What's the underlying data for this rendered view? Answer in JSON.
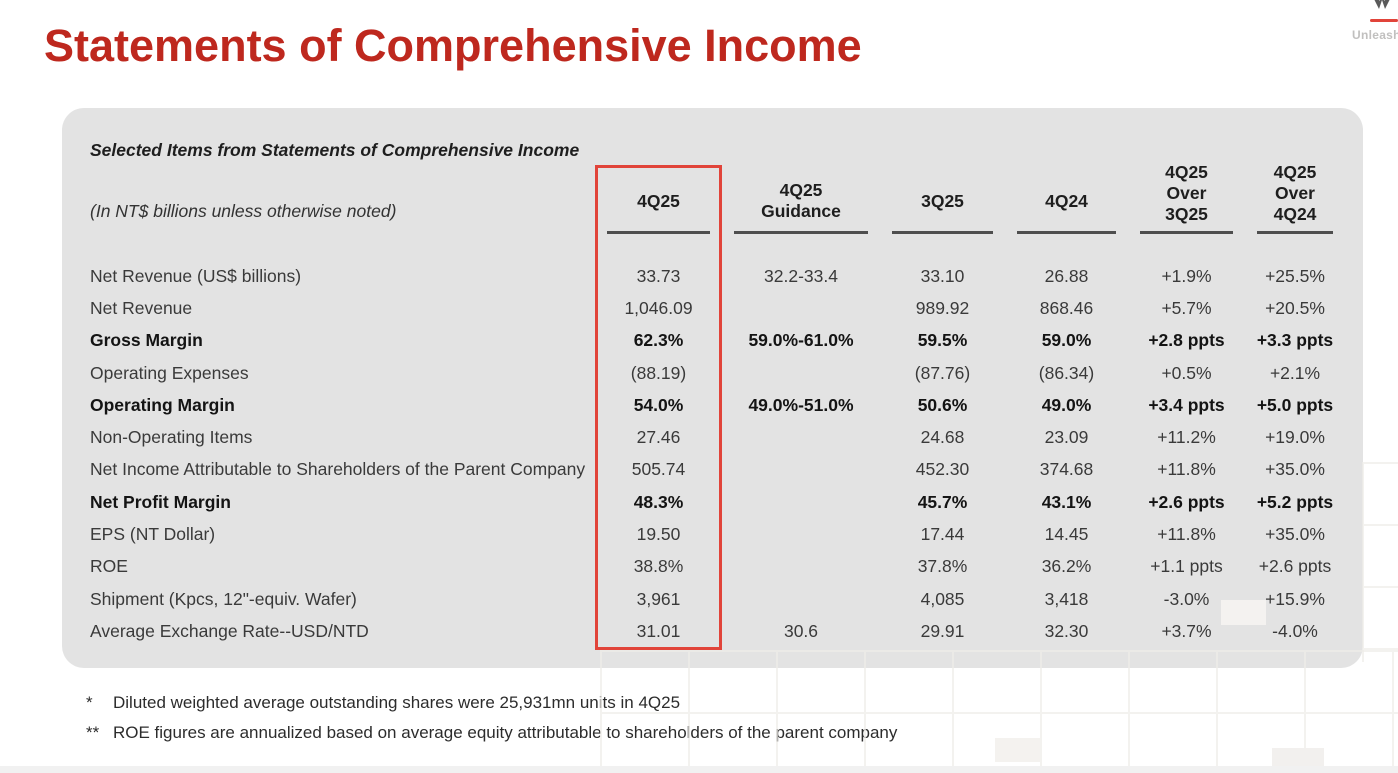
{
  "title": "Statements of Comprehensive Income",
  "logo": {
    "tagline": "Unleash"
  },
  "table": {
    "subtitle": "Selected Items from Statements of Comprehensive Income",
    "unit_note": "(In NT$ billions unless otherwise noted)",
    "columns": [
      [
        "4Q25"
      ],
      [
        "4Q25",
        "Guidance"
      ],
      [
        "3Q25"
      ],
      [
        "4Q24"
      ],
      [
        "4Q25",
        "Over",
        "3Q25"
      ],
      [
        "4Q25",
        "Over",
        "4Q24"
      ]
    ],
    "rows": [
      {
        "label": "Net Revenue (US$ billions)",
        "bold": false,
        "values": [
          "33.73",
          "32.2-33.4",
          "33.10",
          "26.88",
          "+1.9%",
          "+25.5%"
        ]
      },
      {
        "label": "Net Revenue",
        "bold": false,
        "values": [
          "1,046.09",
          "",
          "989.92",
          "868.46",
          "+5.7%",
          "+20.5%"
        ]
      },
      {
        "label": "Gross Margin",
        "bold": true,
        "values": [
          "62.3%",
          "59.0%-61.0%",
          "59.5%",
          "59.0%",
          "+2.8 ppts",
          "+3.3 ppts"
        ]
      },
      {
        "label": "Operating Expenses",
        "bold": false,
        "values": [
          "(88.19)",
          "",
          "(87.76)",
          "(86.34)",
          "+0.5%",
          "+2.1%"
        ]
      },
      {
        "label": "Operating Margin",
        "bold": true,
        "values": [
          "54.0%",
          "49.0%-51.0%",
          "50.6%",
          "49.0%",
          "+3.4 ppts",
          "+5.0 ppts"
        ]
      },
      {
        "label": "Non-Operating Items",
        "bold": false,
        "values": [
          "27.46",
          "",
          "24.68",
          "23.09",
          "+11.2%",
          "+19.0%"
        ]
      },
      {
        "label": "Net Income Attributable to Shareholders of the Parent Company",
        "bold": false,
        "values": [
          "505.74",
          "",
          "452.30",
          "374.68",
          "+11.8%",
          "+35.0%"
        ]
      },
      {
        "label": "Net Profit Margin",
        "bold": true,
        "values": [
          "48.3%",
          "",
          "45.7%",
          "43.1%",
          "+2.6 ppts",
          "+5.2 ppts"
        ]
      },
      {
        "label": "EPS (NT Dollar)",
        "bold": false,
        "values": [
          "19.50",
          "",
          "17.44",
          "14.45",
          "+11.8%",
          "+35.0%"
        ]
      },
      {
        "label": "ROE",
        "bold": false,
        "values": [
          "38.8%",
          "",
          "37.8%",
          "36.2%",
          "+1.1 ppts",
          "+2.6 ppts"
        ]
      },
      {
        "label": "Shipment (Kpcs, 12\"-equiv. Wafer)",
        "bold": false,
        "values": [
          "3,961",
          "",
          "4,085",
          "3,418",
          "-3.0%",
          "+15.9%"
        ]
      },
      {
        "label": "Average Exchange Rate--USD/NTD",
        "bold": false,
        "values": [
          "31.01",
          "30.6",
          "29.91",
          "32.30",
          "+3.7%",
          "-4.0%"
        ]
      }
    ]
  },
  "footnotes": [
    {
      "marker": "*",
      "text": "Diluted weighted average outstanding shares were 25,931mn units in 4Q25"
    },
    {
      "marker": "**",
      "text": "ROE figures are annualized based on average equity attributable to shareholders of the parent company"
    }
  ],
  "colors": {
    "title_red": "#be281e",
    "highlight_red": "#e1443a",
    "panel_gray": "#e3e3e3"
  }
}
